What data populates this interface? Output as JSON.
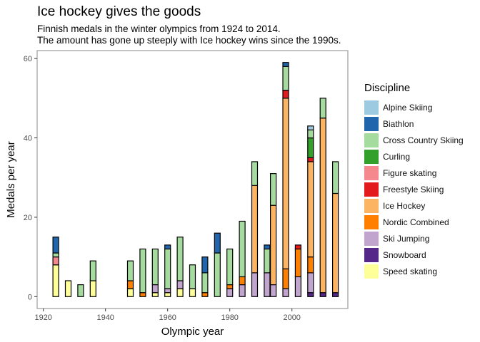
{
  "chart_data": {
    "type": "bar",
    "title": "Ice hockey gives the goods",
    "subtitle": [
      "Finnish medals in the winter olympics from 1924 to 2014.",
      "The amount has gone up steeply with Ice hockey wins since the 1990s."
    ],
    "xlabel": "Olympic year",
    "ylabel": "Medals per year",
    "xlim": [
      1918,
      2018
    ],
    "ylim": [
      -3,
      62
    ],
    "xticks": [
      1920,
      1940,
      1960,
      1980,
      2000
    ],
    "yticks": [
      0,
      20,
      40,
      60
    ],
    "legend_title": "Discipline",
    "legend_position": "right",
    "stacked": true,
    "bar_outline": "#000000",
    "disciplines": [
      {
        "name": "Alpine Skiing",
        "color": "#9ecae1"
      },
      {
        "name": "Biathlon",
        "color": "#2166ac"
      },
      {
        "name": "Cross Country Skiing",
        "color": "#a6dba0"
      },
      {
        "name": "Curling",
        "color": "#33a02c"
      },
      {
        "name": "Figure skating",
        "color": "#f4888c"
      },
      {
        "name": "Freestyle Skiing",
        "color": "#e31a1c"
      },
      {
        "name": "Ice Hockey",
        "color": "#fdb462"
      },
      {
        "name": "Nordic Combined",
        "color": "#ff7f00"
      },
      {
        "name": "Ski Jumping",
        "color": "#c2a5cf"
      },
      {
        "name": "Snowboard",
        "color": "#542788"
      },
      {
        "name": "Speed skating",
        "color": "#ffff99"
      }
    ],
    "data": [
      {
        "year": 1924,
        "medals": {
          "Speed skating": 8,
          "Figure skating": 2,
          "Cross Country Skiing": 1,
          "Biathlon": 4
        }
      },
      {
        "year": 1928,
        "medals": {
          "Speed skating": 4
        }
      },
      {
        "year": 1932,
        "medals": {
          "Cross Country Skiing": 3
        }
      },
      {
        "year": 1936,
        "medals": {
          "Speed skating": 4,
          "Cross Country Skiing": 5
        }
      },
      {
        "year": 1948,
        "medals": {
          "Speed skating": 2,
          "Nordic Combined": 2,
          "Cross Country Skiing": 5
        }
      },
      {
        "year": 1952,
        "medals": {
          "Nordic Combined": 1,
          "Cross Country Skiing": 11
        }
      },
      {
        "year": 1956,
        "medals": {
          "Speed skating": 1,
          "Ski Jumping": 2,
          "Cross Country Skiing": 9
        }
      },
      {
        "year": 1960,
        "medals": {
          "Speed skating": 1,
          "Ski Jumping": 1,
          "Cross Country Skiing": 10,
          "Biathlon": 1
        }
      },
      {
        "year": 1964,
        "medals": {
          "Speed skating": 2,
          "Ski Jumping": 2,
          "Cross Country Skiing": 11
        }
      },
      {
        "year": 1968,
        "medals": {
          "Speed skating": 2,
          "Cross Country Skiing": 6
        }
      },
      {
        "year": 1972,
        "medals": {
          "Nordic Combined": 1,
          "Cross Country Skiing": 5,
          "Biathlon": 4
        }
      },
      {
        "year": 1976,
        "medals": {
          "Cross Country Skiing": 11,
          "Biathlon": 5
        }
      },
      {
        "year": 1980,
        "medals": {
          "Ski Jumping": 2,
          "Nordic Combined": 1,
          "Cross Country Skiing": 9
        }
      },
      {
        "year": 1984,
        "medals": {
          "Ski Jumping": 3,
          "Nordic Combined": 2,
          "Cross Country Skiing": 14
        }
      },
      {
        "year": 1988,
        "medals": {
          "Ski Jumping": 6,
          "Ice Hockey": 22,
          "Cross Country Skiing": 6
        }
      },
      {
        "year": 1992,
        "medals": {
          "Ski Jumping": 6,
          "Cross Country Skiing": 6,
          "Biathlon": 1
        }
      },
      {
        "year": 1994,
        "medals": {
          "Ski Jumping": 3,
          "Ice Hockey": 20,
          "Cross Country Skiing": 8
        }
      },
      {
        "year": 1998,
        "medals": {
          "Ski Jumping": 2,
          "Nordic Combined": 5,
          "Ice Hockey": 43,
          "Freestyle Skiing": 2,
          "Cross Country Skiing": 6,
          "Biathlon": 1
        }
      },
      {
        "year": 2002,
        "medals": {
          "Ski Jumping": 5,
          "Nordic Combined": 7,
          "Freestyle Skiing": 1
        }
      },
      {
        "year": 2006,
        "medals": {
          "Snowboard": 1,
          "Ski Jumping": 5,
          "Nordic Combined": 4,
          "Ice Hockey": 24,
          "Freestyle Skiing": 1,
          "Curling": 5,
          "Cross Country Skiing": 2,
          "Alpine Skiing": 1
        }
      },
      {
        "year": 2010,
        "medals": {
          "Snowboard": 1,
          "Ice Hockey": 44,
          "Cross Country Skiing": 5
        }
      },
      {
        "year": 2014,
        "medals": {
          "Snowboard": 1,
          "Ice Hockey": 25,
          "Cross Country Skiing": 8
        }
      }
    ]
  }
}
